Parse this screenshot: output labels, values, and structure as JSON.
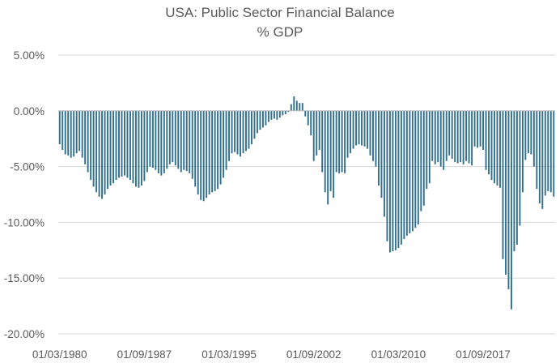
{
  "chart_data": {
    "type": "bar",
    "title": "USA: Public Sector Financial Balance",
    "subtitle": "% GDP",
    "xlabel": "",
    "ylabel": "",
    "ylim": [
      -20,
      5
    ],
    "grid": true,
    "legend": "none",
    "colors": {
      "bar": "#31708f",
      "grid": "#d9d9d9",
      "text": "#595959"
    },
    "y_ticks": [
      "5.00%",
      "0.00%",
      "-5.00%",
      "-10.00%",
      "-15.00%",
      "-20.00%"
    ],
    "y_tick_values": [
      5,
      0,
      -5,
      -10,
      -15,
      -20
    ],
    "x_tick_labels": [
      "01/03/1980",
      "01/09/1987",
      "01/03/1995",
      "01/09/2002",
      "01/03/2010",
      "01/09/2017"
    ],
    "x_tick_index": [
      0,
      30,
      60,
      90,
      120,
      150
    ],
    "series": [
      {
        "values": [
          -3.0,
          -3.5,
          -3.9,
          -4.0,
          -4.2,
          -4.1,
          -3.8,
          -3.6,
          -4.2,
          -4.8,
          -5.5,
          -6.2,
          -6.8,
          -7.3,
          -7.7,
          -7.9,
          -7.5,
          -7.0,
          -6.7,
          -6.5,
          -6.2,
          -6.0,
          -5.9,
          -5.8,
          -6.0,
          -6.2,
          -6.5,
          -6.8,
          -6.9,
          -6.7,
          -6.3,
          -5.5,
          -5.0,
          -5.1,
          -5.3,
          -5.6,
          -5.8,
          -5.6,
          -5.2,
          -4.8,
          -4.6,
          -4.9,
          -5.2,
          -5.5,
          -5.3,
          -5.4,
          -5.6,
          -6.1,
          -6.8,
          -7.5,
          -8.0,
          -8.1,
          -7.8,
          -7.5,
          -7.3,
          -7.2,
          -7.0,
          -6.6,
          -6.0,
          -5.3,
          -4.5,
          -3.8,
          -3.7,
          -3.9,
          -4.1,
          -3.8,
          -3.6,
          -3.4,
          -3.0,
          -2.5,
          -2.0,
          -1.7,
          -1.5,
          -1.3,
          -1.0,
          -0.8,
          -0.7,
          -0.8,
          -0.6,
          -0.4,
          -0.3,
          -0.1,
          0.6,
          1.3,
          0.9,
          0.7,
          0.7,
          -0.5,
          -1.3,
          -2.2,
          -4.5,
          -4.0,
          -3.5,
          -5.5,
          -7.3,
          -8.4,
          -7.2,
          -7.8,
          -5.5,
          -5.6,
          -5.5,
          -5.6,
          -4.2,
          -3.8,
          -3.4,
          -3.1,
          -3.0,
          -3.1,
          -3.2,
          -3.4,
          -4.0,
          -4.5,
          -5.0,
          -6.7,
          -7.8,
          -9.5,
          -11.7,
          -12.7,
          -12.6,
          -12.5,
          -12.3,
          -12.0,
          -11.5,
          -11.2,
          -11.0,
          -10.8,
          -10.5,
          -10.2,
          -9.0,
          -8.5,
          -7.0,
          -6.5,
          -4.5,
          -4.8,
          -4.6,
          -5.0,
          -5.3,
          -4.5,
          -4.0,
          -4.3,
          -4.6,
          -4.7,
          -4.6,
          -4.8,
          -4.5,
          -4.7,
          -4.9,
          -3.2,
          -3.3,
          -3.2,
          -3.5,
          -5.3,
          -5.7,
          -6.2,
          -6.5,
          -6.7,
          -6.9,
          -13.3,
          -14.7,
          -16.0,
          -17.8,
          -12.6,
          -12.0,
          -10.3,
          -7.3,
          -4.4,
          -3.8,
          -3.9,
          -5.0,
          -7.0,
          -8.3,
          -8.8,
          -7.6,
          -7.2,
          -7.3,
          -7.7
        ]
      }
    ]
  }
}
